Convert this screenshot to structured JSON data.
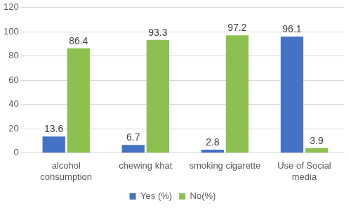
{
  "chart_data": {
    "type": "bar",
    "categories": [
      "alcohol consumption",
      "chewing khat",
      "smoking cigarette",
      "Use of Social media"
    ],
    "series": [
      {
        "name": "Yes (%)",
        "color": "#4472c4",
        "values": [
          13.6,
          6.7,
          2.8,
          96.1
        ]
      },
      {
        "name": "No(%)",
        "color": "#8dc14f",
        "values": [
          86.4,
          93.3,
          97.2,
          3.9
        ]
      }
    ],
    "ylim": [
      0,
      120
    ],
    "yticks": [
      0,
      20,
      40,
      60,
      80,
      100,
      120
    ],
    "grid": true,
    "legend": "bottom",
    "data_labels": true
  }
}
